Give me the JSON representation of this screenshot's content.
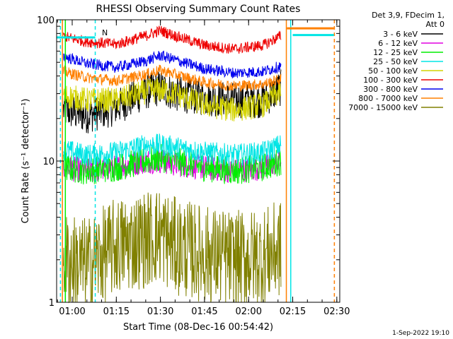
{
  "chart_data": {
    "type": "line",
    "title": "RHESSI Observing Summary Count Rates",
    "xlabel": "Start Time (08-Dec-16 00:54:42)",
    "ylabel": "Count Rate (s⁻¹ detector⁻¹)",
    "y_scale": "log",
    "xlim": [
      "00:54:42",
      "02:31:00"
    ],
    "ylim": [
      1,
      100
    ],
    "x_ticks": [
      "01:00",
      "01:15",
      "01:30",
      "01:45",
      "02:00",
      "02:15",
      "02:30"
    ],
    "y_ticks": [
      "1",
      "10",
      "100"
    ],
    "legend_title": [
      "Det 3,9, FDecim 1,",
      "Att 0"
    ],
    "legend_position": "outside-right",
    "footer": "1-Sep-2022 19:10",
    "annotations": [
      {
        "text": "N",
        "color": "#00e5e5"
      }
    ],
    "series": [
      {
        "name": "3 - 6 keV",
        "color": "#000000",
        "x": [
          "00:57",
          "01:05",
          "01:15",
          "01:25",
          "01:30",
          "01:35",
          "01:45",
          "01:55",
          "02:05",
          "02:11"
        ],
        "values": [
          23,
          21,
          24,
          31,
          33,
          30,
          28,
          27,
          27,
          33
        ]
      },
      {
        "name": "6 - 12 keV",
        "color": "#e000e0",
        "x": [
          "00:57",
          "01:05",
          "01:15",
          "01:25",
          "01:30",
          "01:35",
          "01:45",
          "01:55",
          "02:05",
          "02:11"
        ],
        "values": [
          9,
          8.5,
          9,
          10,
          10,
          9.5,
          9,
          8.5,
          9,
          10
        ]
      },
      {
        "name": "12 - 25 keV",
        "color": "#00ee00",
        "x": [
          "00:57",
          "01:05",
          "01:15",
          "01:25",
          "01:30",
          "01:35",
          "01:45",
          "01:55",
          "02:05",
          "02:11"
        ],
        "values": [
          9,
          8.5,
          9,
          10,
          10.5,
          10,
          9,
          8.5,
          9,
          10
        ]
      },
      {
        "name": "25 - 50 keV",
        "color": "#00e5e5",
        "x": [
          "00:57",
          "01:05",
          "01:15",
          "01:25",
          "01:30",
          "01:35",
          "01:45",
          "01:55",
          "02:05",
          "02:11"
        ],
        "values": [
          12,
          11,
          11.5,
          13,
          13,
          12.5,
          11.5,
          11,
          11.5,
          13
        ]
      },
      {
        "name": "50 - 100 keV",
        "color": "#d4d400",
        "x": [
          "00:57",
          "01:05",
          "01:15",
          "01:25",
          "01:30",
          "01:35",
          "01:45",
          "01:55",
          "02:05",
          "02:11"
        ],
        "values": [
          29,
          27,
          27,
          31,
          32,
          30,
          25,
          23,
          25,
          31
        ]
      },
      {
        "name": "100 - 300 keV",
        "color": "#ee0000",
        "x": [
          "00:57",
          "01:05",
          "01:15",
          "01:25",
          "01:30",
          "01:35",
          "01:45",
          "01:55",
          "02:05",
          "02:11"
        ],
        "values": [
          76,
          70,
          67,
          77,
          84,
          77,
          66,
          62,
          66,
          77
        ]
      },
      {
        "name": "300 - 800 keV",
        "color": "#0000ee",
        "x": [
          "00:57",
          "01:05",
          "01:15",
          "01:25",
          "01:30",
          "01:35",
          "01:45",
          "01:55",
          "02:05",
          "02:11"
        ],
        "values": [
          55,
          49,
          46,
          51,
          56,
          52,
          45,
          42,
          43,
          47
        ]
      },
      {
        "name": "800 - 7000 keV",
        "color": "#ff8000",
        "x": [
          "00:57",
          "01:05",
          "01:15",
          "01:25",
          "01:30",
          "01:35",
          "01:45",
          "01:55",
          "02:05",
          "02:11"
        ],
        "values": [
          43,
          39,
          37,
          41,
          44,
          41,
          36,
          34,
          35,
          38
        ]
      },
      {
        "name": "7000 - 15000 keV",
        "color": "#808000",
        "x": [
          "00:57",
          "01:05",
          "01:15",
          "01:25",
          "01:30",
          "01:35",
          "01:45",
          "01:55",
          "02:05",
          "02:11"
        ],
        "values": [
          2,
          1.8,
          2.5,
          2.8,
          3,
          2.5,
          2.2,
          2,
          2.1,
          2.4
        ]
      }
    ],
    "vertical_markers": [
      {
        "x": "00:56:00",
        "color": "#00e5e5",
        "style": "dashed"
      },
      {
        "x": "00:56:40",
        "color": "#ff8000",
        "style": "solid"
      },
      {
        "x": "00:57:40",
        "color": "#00ee00",
        "style": "solid"
      },
      {
        "x": "01:07:50",
        "color": "#00e5e5",
        "style": "dashed"
      },
      {
        "x": "02:12:50",
        "color": "#ff8000",
        "style": "solid"
      },
      {
        "x": "02:14:20",
        "color": "#00e5e5",
        "style": "solid"
      },
      {
        "x": "02:29:10",
        "color": "#ff8000",
        "style": "dashed"
      }
    ],
    "status_bars": [
      {
        "x0": "00:54:42",
        "x1": "01:07:50",
        "y": 75,
        "color": "#00e5e5"
      },
      {
        "x0": "02:13:00",
        "x1": "02:29:00",
        "y": 87,
        "color": "#ff8000"
      },
      {
        "x0": "02:15:00",
        "x1": "02:29:00",
        "y": 78,
        "color": "#00e5e5"
      }
    ]
  }
}
